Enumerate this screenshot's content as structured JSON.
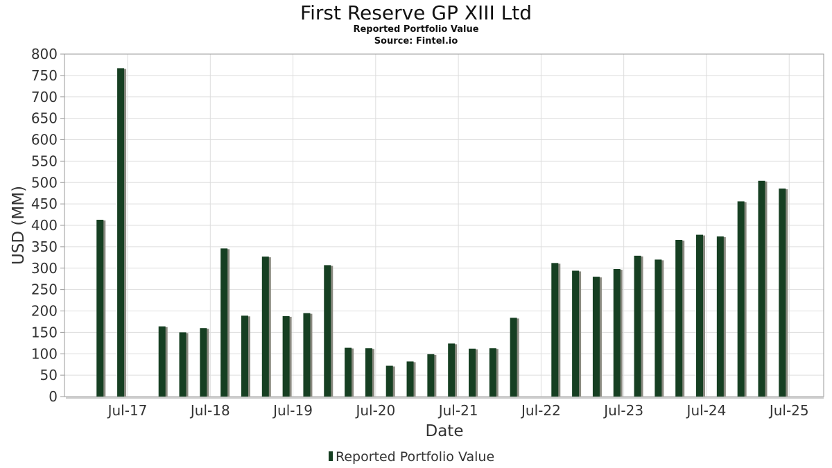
{
  "chart_data": {
    "type": "bar",
    "title": "First Reserve GP XIII Ltd",
    "subtitle": "Reported Portfolio Value",
    "source": "Source: Fintel.io",
    "xlabel": "Date",
    "ylabel": "USD (MM)",
    "ylim": [
      0,
      800
    ],
    "yticks": [
      0,
      50,
      100,
      150,
      200,
      250,
      300,
      350,
      400,
      450,
      500,
      550,
      600,
      650,
      700,
      750,
      800
    ],
    "xtick_labels": [
      "Jul-17",
      "Jul-18",
      "Jul-19",
      "Jul-20",
      "Jul-21",
      "Jul-22",
      "Jul-23",
      "Jul-24",
      "Jul-25"
    ],
    "grid": true,
    "legend": "bottom",
    "colors": {
      "bar": "#163f22",
      "shadow": "#8a8a80",
      "grid": "#dddddd",
      "axis": "#999999"
    },
    "series": [
      {
        "name": "Reported Portfolio Value",
        "points": [
          {
            "date": "2017-03",
            "value": 413
          },
          {
            "date": "2017-06",
            "value": 767
          },
          {
            "date": "2017-12",
            "value": 164
          },
          {
            "date": "2018-03",
            "value": 150
          },
          {
            "date": "2018-06",
            "value": 160
          },
          {
            "date": "2018-09",
            "value": 346
          },
          {
            "date": "2018-12",
            "value": 189
          },
          {
            "date": "2019-03",
            "value": 327
          },
          {
            "date": "2019-06",
            "value": 188
          },
          {
            "date": "2019-09",
            "value": 195
          },
          {
            "date": "2019-12",
            "value": 307
          },
          {
            "date": "2020-03",
            "value": 114
          },
          {
            "date": "2020-06",
            "value": 113
          },
          {
            "date": "2020-09",
            "value": 72
          },
          {
            "date": "2020-12",
            "value": 82
          },
          {
            "date": "2021-03",
            "value": 99
          },
          {
            "date": "2021-06",
            "value": 124
          },
          {
            "date": "2021-09",
            "value": 112
          },
          {
            "date": "2021-12",
            "value": 113
          },
          {
            "date": "2022-03",
            "value": 184
          },
          {
            "date": "2022-09",
            "value": 312
          },
          {
            "date": "2022-12",
            "value": 294
          },
          {
            "date": "2023-03",
            "value": 280
          },
          {
            "date": "2023-06",
            "value": 298
          },
          {
            "date": "2023-09",
            "value": 329
          },
          {
            "date": "2023-12",
            "value": 320
          },
          {
            "date": "2024-03",
            "value": 366
          },
          {
            "date": "2024-06",
            "value": 378
          },
          {
            "date": "2024-09",
            "value": 374
          },
          {
            "date": "2024-12",
            "value": 456
          },
          {
            "date": "2025-03",
            "value": 504
          },
          {
            "date": "2025-06",
            "value": 486
          }
        ]
      }
    ]
  }
}
